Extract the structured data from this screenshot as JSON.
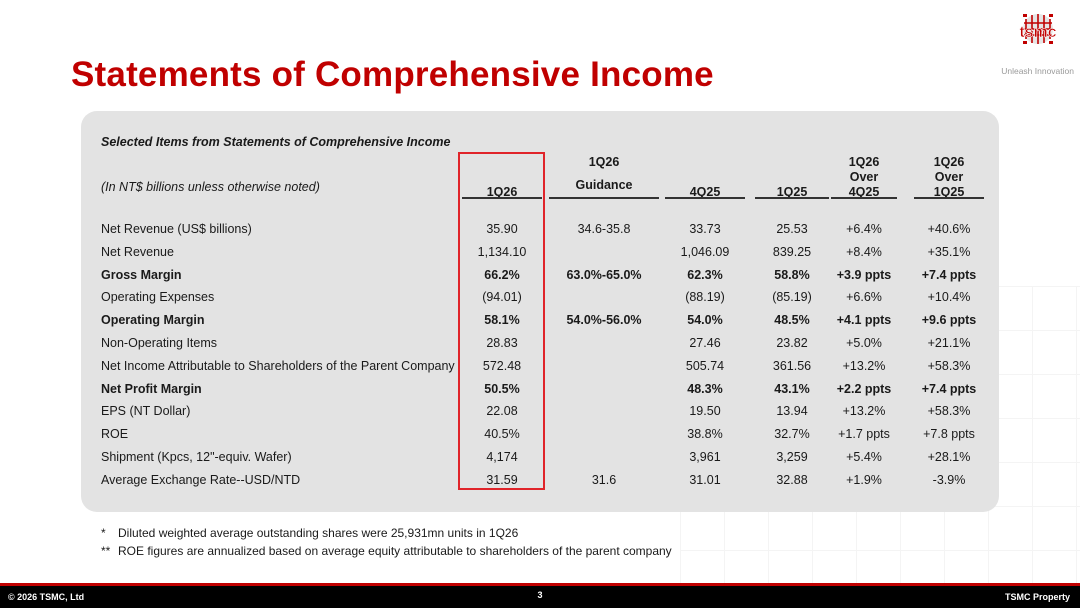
{
  "title": "Statements of Comprehensive Income",
  "logo": {
    "text": "tsmc",
    "tagline": "Unleash Innovation"
  },
  "table": {
    "section_title": "Selected Items from Statements of Comprehensive Income",
    "unit_note": "(In NT$ billions unless otherwise noted)",
    "columns": [
      {
        "line1": "",
        "line2": "",
        "line3": "1Q26"
      },
      {
        "line1": "1Q26",
        "line2": "",
        "line3": "Guidance"
      },
      {
        "line1": "",
        "line2": "",
        "line3": "4Q25"
      },
      {
        "line1": "",
        "line2": "",
        "line3": "1Q25"
      },
      {
        "line1": "1Q26",
        "line2": "Over",
        "line3": "4Q25"
      },
      {
        "line1": "1Q26",
        "line2": "Over",
        "line3": "1Q25"
      }
    ],
    "rows": [
      {
        "label": "Net Revenue (US$ billions)",
        "bold": false,
        "values": [
          "35.90",
          "34.6-35.8",
          "33.73",
          "25.53",
          "+6.4%",
          "+40.6%"
        ]
      },
      {
        "label": "Net Revenue",
        "bold": false,
        "values": [
          "1,134.10",
          "",
          "1,046.09",
          "839.25",
          "+8.4%",
          "+35.1%"
        ]
      },
      {
        "label": "Gross Margin",
        "bold": true,
        "values": [
          "66.2%",
          "63.0%-65.0%",
          "62.3%",
          "58.8%",
          "+3.9 ppts",
          "+7.4 ppts"
        ]
      },
      {
        "label": "Operating Expenses",
        "bold": false,
        "values": [
          "(94.01)",
          "",
          "(88.19)",
          "(85.19)",
          "+6.6%",
          "+10.4%"
        ]
      },
      {
        "label": "Operating Margin",
        "bold": true,
        "values": [
          "58.1%",
          "54.0%-56.0%",
          "54.0%",
          "48.5%",
          "+4.1 ppts",
          "+9.6 ppts"
        ]
      },
      {
        "label": "Non-Operating Items",
        "bold": false,
        "values": [
          "28.83",
          "",
          "27.46",
          "23.82",
          "+5.0%",
          "+21.1%"
        ]
      },
      {
        "label": "Net Income Attributable to Shareholders of the Parent Company",
        "bold": false,
        "values": [
          "572.48",
          "",
          "505.74",
          "361.56",
          "+13.2%",
          "+58.3%"
        ]
      },
      {
        "label": "Net Profit Margin",
        "bold": true,
        "values": [
          "50.5%",
          "",
          "48.3%",
          "43.1%",
          "+2.2 ppts",
          "+7.4 ppts"
        ]
      },
      {
        "label": "EPS (NT Dollar)",
        "bold": false,
        "values": [
          "22.08",
          "",
          "19.50",
          "13.94",
          "+13.2%",
          "+58.3%"
        ]
      },
      {
        "label": "ROE",
        "bold": false,
        "values": [
          "40.5%",
          "",
          "38.8%",
          "32.7%",
          "+1.7 ppts",
          "+7.8 ppts"
        ]
      },
      {
        "label": "Shipment (Kpcs, 12\"-equiv. Wafer)",
        "bold": false,
        "values": [
          "4,174",
          "",
          "3,961",
          "3,259",
          "+5.4%",
          "+28.1%"
        ]
      },
      {
        "label": "Average Exchange Rate--USD/NTD",
        "bold": false,
        "values": [
          "31.59",
          "31.6",
          "31.01",
          "32.88",
          "+1.9%",
          "-3.9%"
        ]
      }
    ]
  },
  "notes": [
    {
      "marker": "*",
      "text": "Diluted weighted average outstanding shares were 25,931mn units in 1Q26"
    },
    {
      "marker": "**",
      "text": "ROE figures are annualized based on average equity attributable to shareholders of the parent company"
    }
  ],
  "footer": {
    "copyright": "© 2026 TSMC, Ltd",
    "page": "3",
    "property": "TSMC Property"
  },
  "colors": {
    "title_red": "#c00000",
    "highlight_red": "#e0242a",
    "panel_gray": "#e3e3e3"
  }
}
